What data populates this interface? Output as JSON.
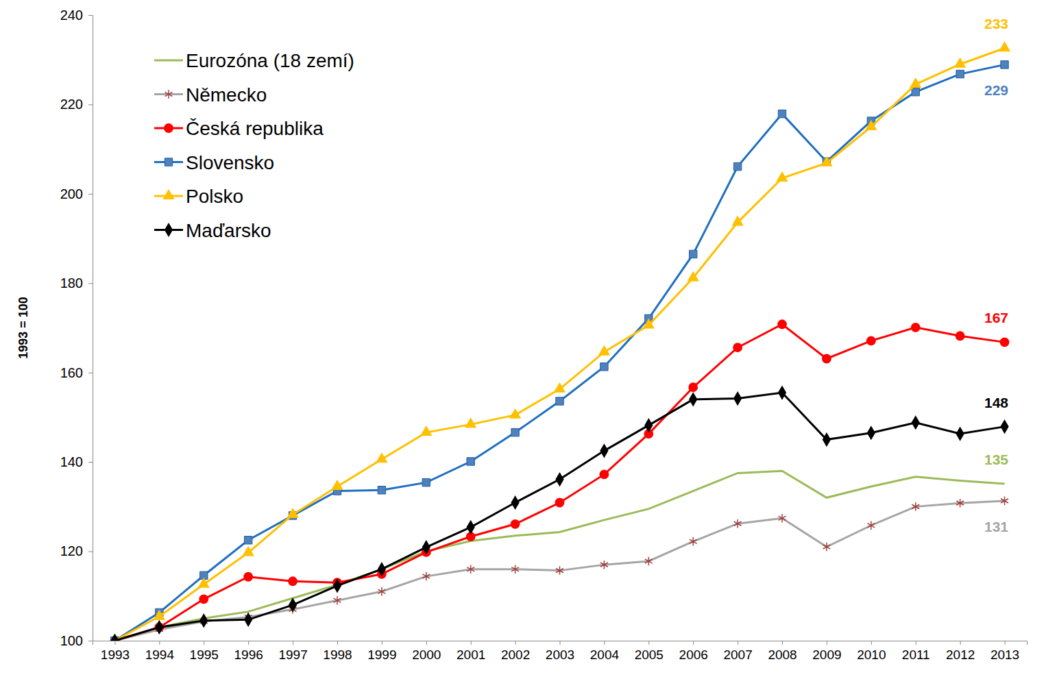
{
  "chart_data": {
    "type": "line",
    "y_label": "1993 = 100",
    "categories": [
      "1993",
      "1994",
      "1995",
      "1996",
      "1997",
      "1998",
      "1999",
      "2000",
      "2001",
      "2002",
      "2003",
      "2004",
      "2005",
      "2006",
      "2007",
      "2008",
      "2009",
      "2010",
      "2011",
      "2012",
      "2013"
    ],
    "ylim": [
      100,
      240
    ],
    "yticks": [
      100,
      120,
      140,
      160,
      180,
      200,
      220,
      240
    ],
    "grid": false,
    "legend": "upper left",
    "series": [
      {
        "name": "Eurozóna (18 zemí)",
        "color": "#9bbb59",
        "marker": "none",
        "end_label": "135",
        "values": [
          100,
          103,
          105,
          106.5,
          109.5,
          112.5,
          116,
          120,
          122.3,
          123.5,
          124.3,
          127,
          129.5,
          133.5,
          137.5,
          138,
          132,
          134.5,
          136.7,
          135.8,
          135.1
        ]
      },
      {
        "name": "Německo",
        "color": "#a5a5a5",
        "marker": "asterisk",
        "end_label": "131",
        "values": [
          100,
          102.5,
          104.3,
          105.3,
          107,
          109,
          111,
          114.4,
          116,
          116,
          115.7,
          117,
          117.8,
          122.2,
          126.2,
          127.4,
          121,
          125.8,
          130,
          130.8,
          131.3
        ]
      },
      {
        "name": "Česká republika",
        "color": "#ff0000",
        "marker": "circle",
        "end_label": "167",
        "values": [
          100,
          103,
          109.3,
          114.3,
          113.3,
          113,
          114.9,
          119.8,
          123.3,
          126.1,
          130.9,
          137.2,
          146.3,
          156.7,
          165.6,
          170.8,
          163.1,
          167.1,
          170.1,
          168.2,
          166.8
        ]
      },
      {
        "name": "Slovensko",
        "color": "#1f6fbf",
        "marker": "square",
        "end_label": "229",
        "values": [
          100,
          106.3,
          114.6,
          122.5,
          128,
          133.5,
          133.7,
          135.4,
          140.1,
          146.6,
          153.6,
          161.3,
          172.1,
          186.5,
          206.1,
          217.9,
          207.2,
          216.3,
          222.8,
          226.8,
          228.9
        ]
      },
      {
        "name": "Polsko",
        "color": "#ffc000",
        "marker": "triangle",
        "end_label": "233",
        "values": [
          100,
          105.4,
          112.6,
          119.7,
          128.2,
          134.5,
          140.6,
          146.6,
          148.4,
          150.5,
          156.3,
          164.6,
          170.6,
          181.2,
          193.6,
          203.5,
          206.9,
          215,
          224.5,
          229,
          232.6
        ]
      },
      {
        "name": "Maďarsko",
        "color": "#000000",
        "marker": "diamond",
        "end_label": "148",
        "values": [
          100,
          103,
          104.5,
          104.7,
          108,
          112.3,
          116,
          120.9,
          125.4,
          130.9,
          136.1,
          142.5,
          148.2,
          154,
          154.2,
          155.5,
          145,
          146.5,
          148.8,
          146.3,
          147.9
        ]
      }
    ]
  }
}
